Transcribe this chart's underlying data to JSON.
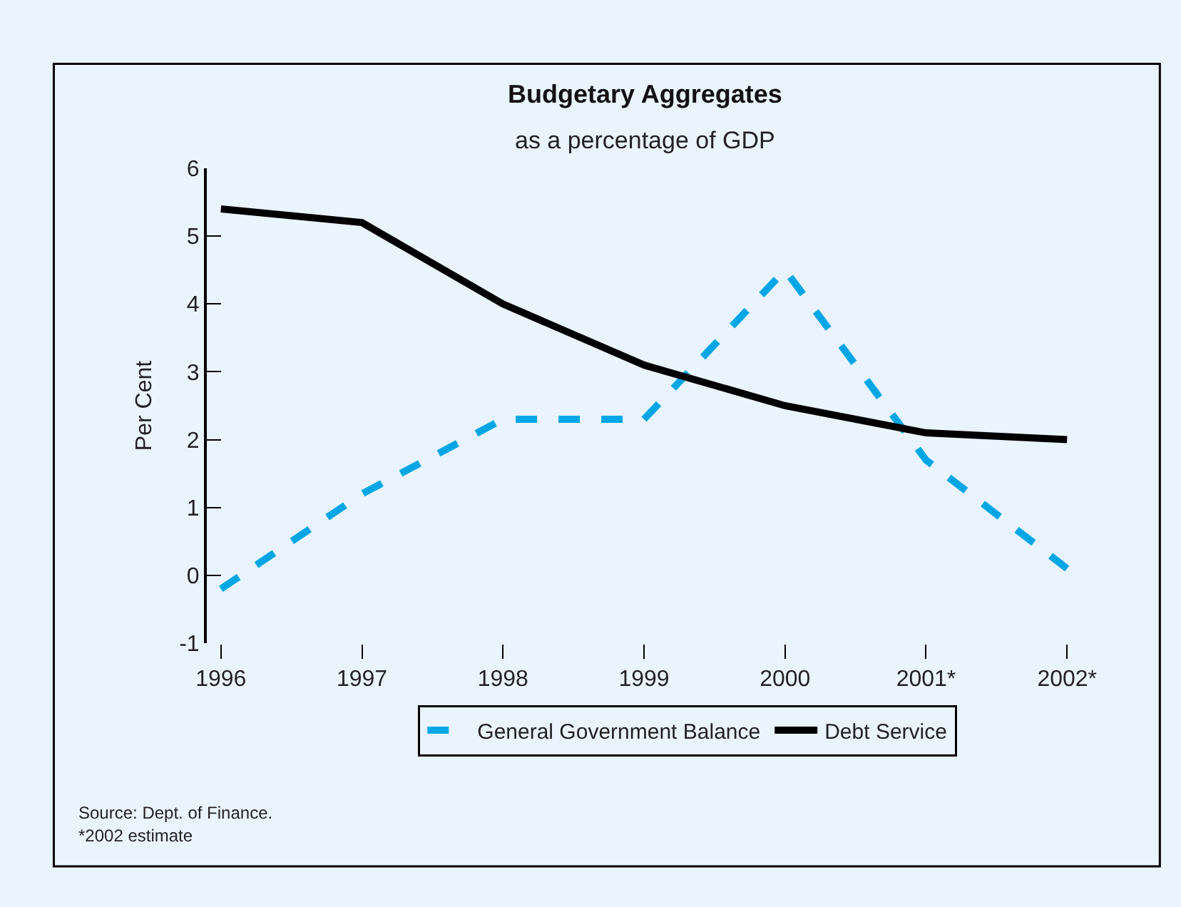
{
  "chart_data": {
    "type": "line",
    "title": "Budgetary Aggregates",
    "subtitle": "as a percentage of GDP",
    "ylabel": "Per Cent",
    "categories": [
      "1996",
      "1997",
      "1998",
      "1999",
      "2000",
      "2001*",
      "2002*"
    ],
    "series": [
      {
        "name": "General Government Balance",
        "color": "#00a6e6",
        "line_style": "dashed",
        "values": [
          -0.2,
          1.2,
          2.3,
          2.3,
          4.5,
          1.7,
          0.1
        ]
      },
      {
        "name": "Debt Service",
        "color": "#000000",
        "line_style": "solid",
        "values": [
          5.4,
          5.2,
          4.0,
          3.1,
          2.5,
          2.1,
          2.0
        ]
      }
    ],
    "ylim": [
      -1,
      6
    ],
    "yticks": [
      -1,
      0,
      1,
      2,
      3,
      4,
      5,
      6
    ],
    "grid": false,
    "legend": "bottom",
    "marker": "none",
    "annotations": [
      "Source: Dept. of Finance.",
      "*2002 estimate"
    ]
  }
}
